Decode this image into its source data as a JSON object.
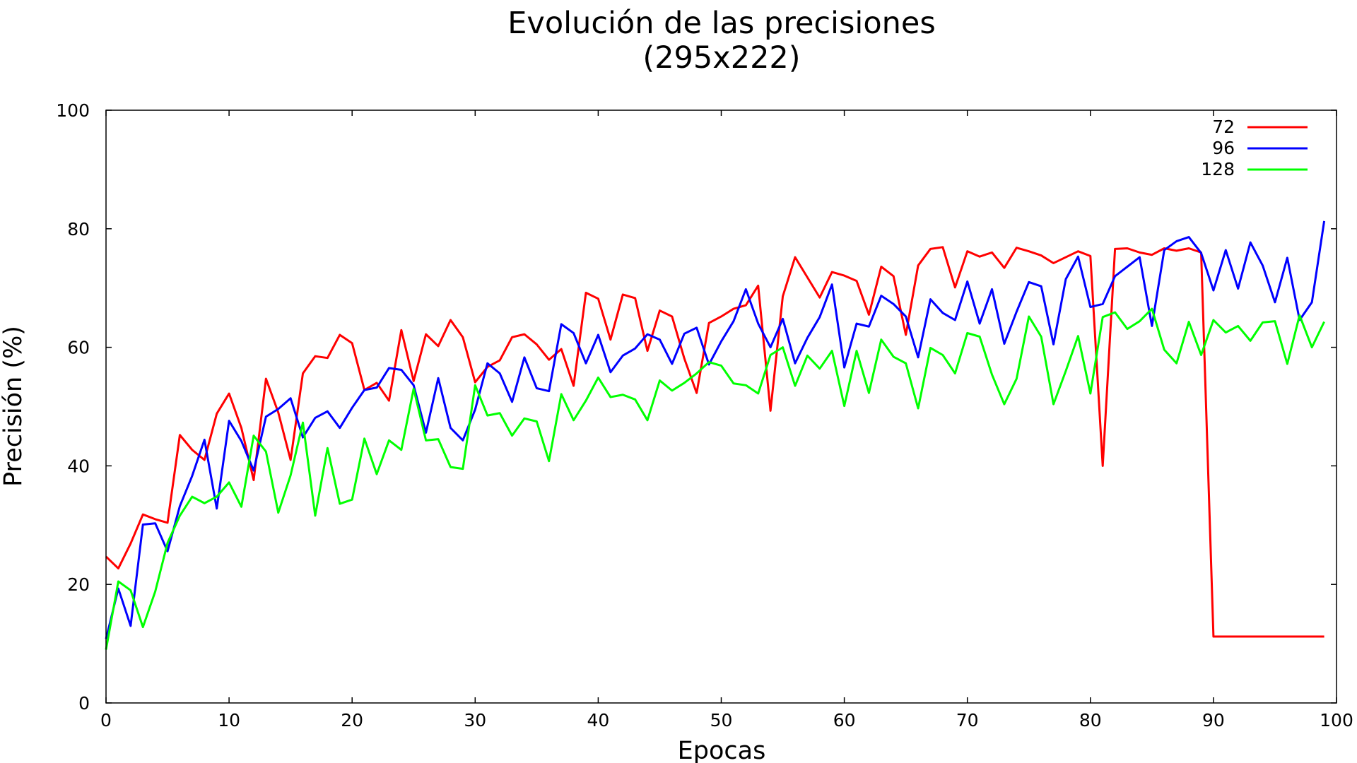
{
  "chart_data": {
    "type": "line",
    "title": "Evolución de las precisiones",
    "subtitle": "(295x222)",
    "xlabel": "Epocas",
    "ylabel": "Precisión (%)",
    "xlim": [
      0,
      100
    ],
    "ylim": [
      0,
      100
    ],
    "xticks": [
      0,
      10,
      20,
      30,
      40,
      50,
      60,
      70,
      80,
      90,
      100
    ],
    "yticks": [
      0,
      20,
      40,
      60,
      80,
      100
    ],
    "grid": false,
    "legend_position": "top-right",
    "series": [
      {
        "name": "72",
        "color": "#ff0000",
        "values": [
          24.7,
          22.7,
          26.9,
          31.8,
          31.0,
          30.4,
          45.2,
          42.7,
          41.0,
          48.8,
          52.2,
          46.4,
          37.6,
          54.7,
          49.0,
          41.0,
          55.6,
          58.5,
          58.2,
          62.1,
          60.7,
          52.8,
          54.0,
          51.0,
          62.9,
          54.3,
          62.2,
          60.2,
          64.6,
          61.7,
          54.1,
          56.7,
          57.8,
          61.7,
          62.2,
          60.5,
          57.9,
          59.7,
          53.5,
          69.2,
          68.2,
          61.3,
          68.9,
          68.3,
          59.4,
          66.2,
          65.2,
          58.1,
          52.3,
          64.1,
          65.2,
          66.5,
          67.1,
          70.4,
          49.3,
          68.6,
          75.2,
          71.8,
          68.4,
          72.7,
          72.1,
          71.2,
          65.5,
          73.6,
          72.0,
          62.1,
          73.8,
          76.6,
          76.9,
          70.1,
          76.2,
          75.3,
          76.0,
          73.4,
          76.8,
          76.2,
          75.5,
          74.2,
          75.2,
          76.2,
          75.4,
          40.0,
          76.6,
          76.7,
          76.0,
          75.6,
          76.7,
          76.3,
          76.7,
          76.0,
          11.2,
          11.2,
          11.2,
          11.2,
          11.2,
          11.2,
          11.2,
          11.2,
          11.2,
          11.2
        ]
      },
      {
        "name": "96",
        "color": "#0000ff",
        "values": [
          10.8,
          19.3,
          13.0,
          30.1,
          30.3,
          25.6,
          33.2,
          38.3,
          44.4,
          32.8,
          47.6,
          44.2,
          39.2,
          48.3,
          49.6,
          51.4,
          44.8,
          48.1,
          49.2,
          46.4,
          49.8,
          52.8,
          53.2,
          56.5,
          56.2,
          53.6,
          45.6,
          54.8,
          46.4,
          44.3,
          49.5,
          57.3,
          55.6,
          50.8,
          58.3,
          53.1,
          52.6,
          63.9,
          62.4,
          57.3,
          62.1,
          55.8,
          58.6,
          59.8,
          62.2,
          61.3,
          57.2,
          62.3,
          63.3,
          57.1,
          61.0,
          64.4,
          69.8,
          64.0,
          60.0,
          64.8,
          57.3,
          61.6,
          65.1,
          70.6,
          56.6,
          64.0,
          63.5,
          68.7,
          67.3,
          65.2,
          58.3,
          68.1,
          65.8,
          64.6,
          71.1,
          64.0,
          69.8,
          60.6,
          66.0,
          71.0,
          70.3,
          60.5,
          71.5,
          75.3,
          66.8,
          67.3,
          72.0,
          73.6,
          75.2,
          63.6,
          76.4,
          77.9,
          78.6,
          75.9,
          69.6,
          76.4,
          69.9,
          77.7,
          73.8,
          67.6,
          75.1,
          64.6,
          67.6,
          81.3
        ]
      },
      {
        "name": "128",
        "color": "#00ff00",
        "values": [
          9.0,
          20.5,
          19.0,
          12.8,
          18.8,
          27.0,
          31.6,
          34.8,
          33.7,
          34.8,
          37.2,
          33.1,
          45.1,
          42.4,
          32.1,
          38.4,
          47.3,
          31.6,
          43.0,
          33.6,
          34.3,
          44.6,
          38.6,
          44.3,
          42.7,
          53.0,
          44.3,
          44.5,
          39.8,
          39.5,
          53.6,
          48.5,
          48.9,
          45.1,
          48.0,
          47.5,
          40.8,
          52.1,
          47.7,
          51.0,
          54.9,
          51.6,
          52.0,
          51.2,
          47.7,
          54.4,
          52.7,
          54.0,
          55.6,
          57.5,
          56.9,
          53.9,
          53.6,
          52.2,
          58.7,
          60.0,
          53.5,
          58.6,
          56.4,
          59.4,
          50.1,
          59.4,
          52.3,
          61.3,
          58.4,
          57.3,
          49.7,
          59.9,
          58.7,
          55.6,
          62.4,
          61.8,
          55.4,
          50.4,
          54.7,
          65.2,
          61.8,
          50.4,
          56.0,
          61.9,
          52.2,
          65.1,
          65.9,
          63.1,
          64.4,
          66.5,
          59.6,
          57.3,
          64.3,
          58.7,
          64.6,
          62.5,
          63.6,
          61.1,
          64.2,
          64.4,
          57.2,
          65.4,
          60.0,
          64.3
        ]
      }
    ]
  }
}
